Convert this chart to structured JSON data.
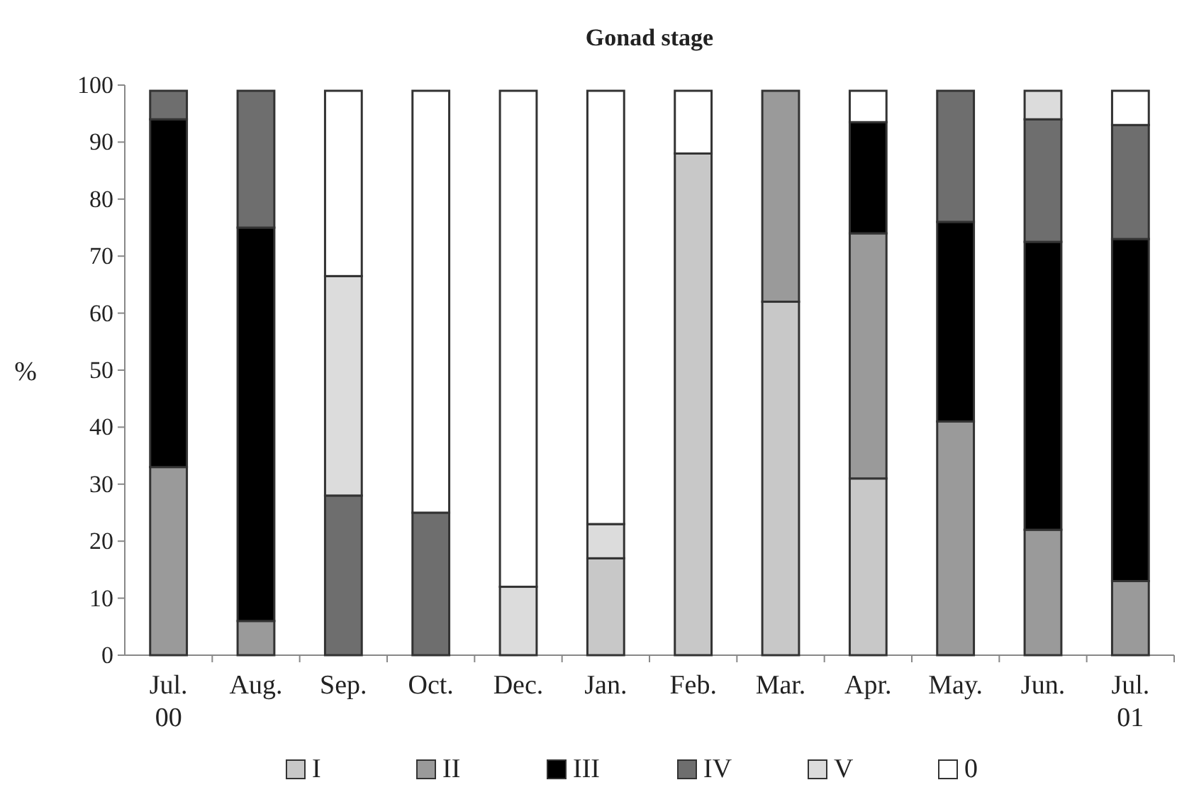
{
  "chart_data": {
    "type": "bar",
    "title": "Gonad stage",
    "ylabel": "%",
    "stacked": true,
    "legend": "bottom",
    "grid": false,
    "categories": [
      "Jul.\n00",
      "Aug.",
      "Sep.",
      "Oct.",
      "Dec.",
      "Jan.",
      "Feb.",
      "Mar.",
      "Apr.",
      "May.",
      "Jun.",
      "Jul.\n01"
    ],
    "ylim": [
      0,
      100
    ],
    "yticks": [
      0,
      10,
      20,
      30,
      40,
      50,
      60,
      70,
      80,
      90,
      100
    ],
    "series": [
      {
        "name": "I",
        "color": "#c8c8c8",
        "values": [
          0,
          0,
          0,
          0,
          0,
          17,
          88,
          62,
          31,
          0,
          0,
          0
        ]
      },
      {
        "name": "II",
        "color": "#9a9a9a",
        "values": [
          33,
          6,
          0,
          0,
          0,
          0,
          0,
          37,
          43,
          41,
          22,
          13
        ]
      },
      {
        "name": "III",
        "color": "#000000",
        "values": [
          61,
          69,
          0,
          0,
          0,
          0,
          0,
          0,
          19.5,
          35,
          50.5,
          60
        ]
      },
      {
        "name": "IV",
        "color": "#6e6e6e",
        "values": [
          5,
          24,
          28,
          25,
          0,
          0,
          0,
          0,
          0,
          23,
          21.5,
          20
        ]
      },
      {
        "name": "V",
        "color": "#dcdcdc",
        "values": [
          0,
          0,
          38.5,
          0,
          12,
          6,
          0,
          0,
          0,
          0,
          5,
          0
        ]
      },
      {
        "name": "0",
        "color": "#ffffff",
        "values": [
          0,
          0,
          32.5,
          74,
          87,
          76,
          11,
          0,
          5.5,
          0,
          0,
          6
        ]
      }
    ]
  }
}
